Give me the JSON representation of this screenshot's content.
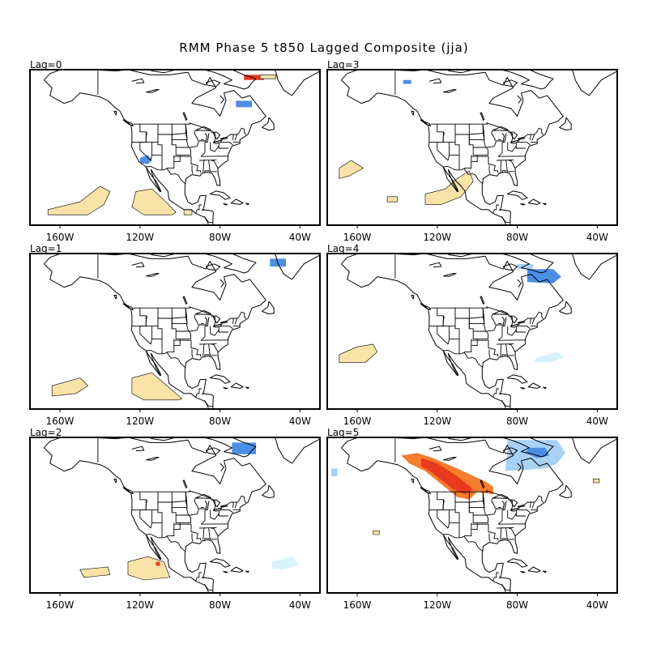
{
  "title": "RMM Phase 5 t850 Lagged Composite (jja)",
  "x_ticks": [
    "160W",
    "120W",
    "80W",
    "40W"
  ],
  "colors": {
    "warm_light": "#f9e3a8",
    "warm_orange": "#f47c2d",
    "warm_red": "#e83a1c",
    "cool_blue": "#4b8fe5",
    "cool_lightblue": "#a9d0f5",
    "cool_palecyan": "#d8f2fb",
    "coast": "#000000"
  },
  "panels": [
    {
      "label": "Lag=0",
      "anomalies": [
        {
          "type": "warm_red",
          "points": [
            [
              -68,
              68
            ],
            [
              -58,
              68
            ],
            [
              -58,
              66
            ],
            [
              -68,
              66
            ]
          ]
        },
        {
          "type": "warm_light",
          "points": [
            [
              -60,
              68
            ],
            [
              -52,
              68
            ],
            [
              -52,
              66.5
            ],
            [
              -60,
              66.5
            ]
          ]
        },
        {
          "type": "cool_blue",
          "points": [
            [
              -72,
              58
            ],
            [
              -64,
              58
            ],
            [
              -64,
              55.5
            ],
            [
              -72,
              55.5
            ]
          ]
        },
        {
          "type": "cool_blue",
          "points": [
            [
              -120,
              36
            ],
            [
              -116,
              37
            ],
            [
              -114,
              35
            ],
            [
              -116,
              33.5
            ],
            [
              -120,
              34
            ]
          ]
        },
        {
          "type": "warm_light",
          "points": [
            [
              -166,
              16
            ],
            [
              -150,
              19
            ],
            [
              -140,
              25
            ],
            [
              -135,
              23
            ],
            [
              -138,
              18
            ],
            [
              -146,
              14
            ],
            [
              -166,
              14
            ]
          ]
        },
        {
          "type": "warm_light",
          "points": [
            [
              -122,
              23
            ],
            [
              -114,
              24
            ],
            [
              -107,
              19
            ],
            [
              -102,
              15
            ],
            [
              -104,
              14
            ],
            [
              -118,
              14
            ],
            [
              -124,
              17
            ]
          ]
        },
        {
          "type": "warm_light",
          "points": [
            [
              -98,
              16
            ],
            [
              -94,
              16
            ],
            [
              -94,
              14
            ],
            [
              -98,
              14
            ]
          ]
        }
      ]
    },
    {
      "label": "Lag=3",
      "anomalies": [
        {
          "type": "cool_blue",
          "points": [
            [
              -137,
              66
            ],
            [
              -133,
              66
            ],
            [
              -133,
              64.5
            ],
            [
              -137,
              64.5
            ]
          ]
        },
        {
          "type": "warm_light",
          "points": [
            [
              -169,
              32
            ],
            [
              -163,
              35
            ],
            [
              -157,
              32
            ],
            [
              -164,
              29
            ],
            [
              -169,
              28
            ]
          ]
        },
        {
          "type": "warm_light",
          "points": [
            [
              -126,
              22
            ],
            [
              -116,
              24
            ],
            [
              -110,
              28
            ],
            [
              -104,
              31
            ],
            [
              -102,
              27
            ],
            [
              -108,
              21
            ],
            [
              -118,
              18
            ],
            [
              -126,
              18
            ]
          ]
        },
        {
          "type": "warm_light",
          "points": [
            [
              -145,
              21
            ],
            [
              -140,
              21
            ],
            [
              -140,
              19
            ],
            [
              -145,
              19
            ]
          ]
        }
      ]
    },
    {
      "label": "Lag=1",
      "anomalies": [
        {
          "type": "cool_blue",
          "points": [
            [
              -55,
              68
            ],
            [
              -47,
              68
            ],
            [
              -47,
              65
            ],
            [
              -55,
              65
            ]
          ]
        },
        {
          "type": "warm_light",
          "points": [
            [
              -164,
              19
            ],
            [
              -150,
              22
            ],
            [
              -146,
              19
            ],
            [
              -152,
              16
            ],
            [
              -164,
              15
            ]
          ]
        },
        {
          "type": "warm_light",
          "points": [
            [
              -124,
              22
            ],
            [
              -114,
              24
            ],
            [
              -105,
              18
            ],
            [
              -99,
              14
            ],
            [
              -101,
              13.5
            ],
            [
              -118,
              13.5
            ],
            [
              -124,
              16
            ]
          ]
        }
      ]
    },
    {
      "label": "Lag=4",
      "anomalies": [
        {
          "type": "cool_blue",
          "points": [
            [
              -75,
              64
            ],
            [
              -62,
              64
            ],
            [
              -58,
              61
            ],
            [
              -62,
              58.5
            ],
            [
              -75,
              59
            ]
          ]
        },
        {
          "type": "cool_lightblue",
          "points": [
            [
              -80,
              66
            ],
            [
              -72,
              66
            ],
            [
              -72,
              64
            ],
            [
              -80,
              64
            ]
          ]
        },
        {
          "type": "warm_light",
          "points": [
            [
              -169,
              31
            ],
            [
              -160,
              34
            ],
            [
              -152,
              35
            ],
            [
              -150,
              32
            ],
            [
              -156,
              28
            ],
            [
              -169,
              28
            ]
          ]
        },
        {
          "type": "cool_palecyan",
          "points": [
            [
              -70,
              30
            ],
            [
              -60,
              32
            ],
            [
              -56,
              30
            ],
            [
              -64,
              28
            ],
            [
              -72,
              28
            ]
          ]
        }
      ]
    },
    {
      "label": "Lag=2",
      "anomalies": [
        {
          "type": "cool_blue",
          "points": [
            [
              -74,
              68
            ],
            [
              -62,
              68
            ],
            [
              -62,
              63.5
            ],
            [
              -74,
              63.5
            ]
          ]
        },
        {
          "type": "warm_light",
          "points": [
            [
              -150,
              19
            ],
            [
              -136,
              20
            ],
            [
              -135,
              17
            ],
            [
              -148,
              16
            ]
          ]
        },
        {
          "type": "warm_light",
          "points": [
            [
              -126,
              22
            ],
            [
              -116,
              24
            ],
            [
              -108,
              22
            ],
            [
              -105,
              16
            ],
            [
              -118,
              15
            ],
            [
              -126,
              17
            ]
          ]
        },
        {
          "type": "warm_red",
          "points": [
            [
              -112,
              22
            ],
            [
              -110,
              22
            ],
            [
              -110,
              20.5
            ],
            [
              -112,
              20.5
            ]
          ]
        },
        {
          "type": "cool_palecyan",
          "points": [
            [
              -54,
              22
            ],
            [
              -44,
              24
            ],
            [
              -40,
              21
            ],
            [
              -48,
              19
            ],
            [
              -54,
              19.5
            ]
          ]
        }
      ]
    },
    {
      "label": "Lag=5",
      "anomalies": [
        {
          "type": "cool_lightblue",
          "points": [
            [
              -85,
              69
            ],
            [
              -60,
              69
            ],
            [
              -56,
              64
            ],
            [
              -60,
              60
            ],
            [
              -66,
              58
            ],
            [
              -86,
              57
            ],
            [
              -85,
              64
            ]
          ]
        },
        {
          "type": "cool_blue",
          "points": [
            [
              -74,
              66
            ],
            [
              -66,
              66
            ],
            [
              -64,
              63
            ],
            [
              -70,
              62
            ],
            [
              -76,
              64
            ]
          ]
        },
        {
          "type": "cool_lightblue",
          "points": [
            [
              -173,
              58
            ],
            [
              -170,
              58
            ],
            [
              -170,
              55
            ],
            [
              -173,
              55
            ]
          ]
        },
        {
          "type": "warm_orange",
          "points": [
            [
              -138,
              63
            ],
            [
              -130,
              64
            ],
            [
              -122,
              62
            ],
            [
              -110,
              58
            ],
            [
              -96,
              53
            ],
            [
              -92,
              51
            ],
            [
              -92,
              48
            ],
            [
              -100,
              49
            ],
            [
              -104,
              46
            ],
            [
              -110,
              47
            ],
            [
              -118,
              52
            ],
            [
              -126,
              57
            ],
            [
              -134,
              60
            ]
          ]
        },
        {
          "type": "warm_red",
          "points": [
            [
              -128,
              62
            ],
            [
              -120,
              60
            ],
            [
              -110,
              55
            ],
            [
              -102,
              50
            ],
            [
              -106,
              48
            ],
            [
              -112,
              50
            ],
            [
              -122,
              56
            ],
            [
              -128,
              59
            ]
          ]
        },
        {
          "type": "warm_light",
          "points": [
            [
              -152,
              34
            ],
            [
              -149,
              34
            ],
            [
              -149,
              32.5
            ],
            [
              -152,
              32.5
            ]
          ]
        },
        {
          "type": "warm_light",
          "points": [
            [
              -42,
              54
            ],
            [
              -39,
              54
            ],
            [
              -39,
              52.5
            ],
            [
              -42,
              52.5
            ]
          ]
        }
      ]
    }
  ]
}
